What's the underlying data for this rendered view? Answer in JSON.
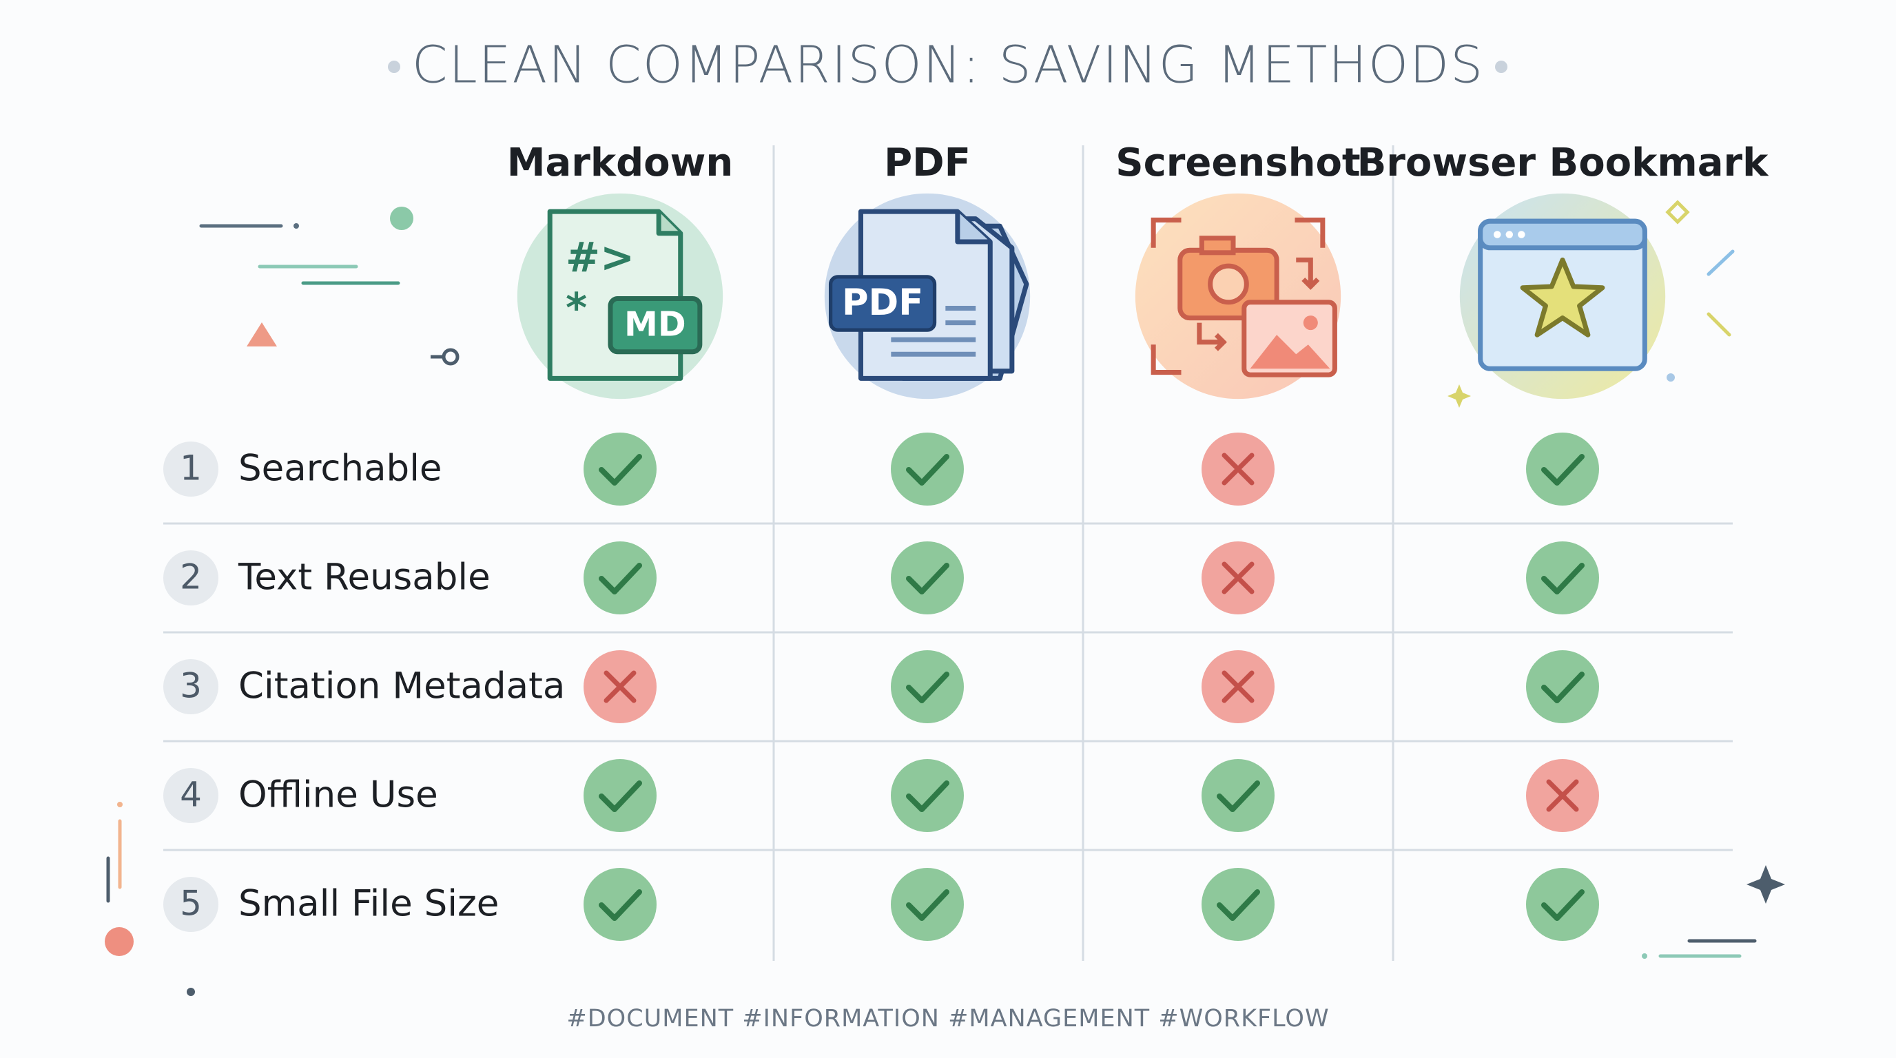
{
  "title": "CLEAN COMPARISON: SAVING METHODS",
  "columns": [
    {
      "name": "Markdown",
      "icon_text": "MD"
    },
    {
      "name": "PDF",
      "icon_text": "PDF"
    },
    {
      "name": "Screenshot"
    },
    {
      "name": "Browser Bookmark"
    }
  ],
  "rows": [
    {
      "number": 1,
      "label": "Searchable",
      "cells": [
        true,
        true,
        false,
        true
      ]
    },
    {
      "number": 2,
      "label": "Text Reusable",
      "cells": [
        true,
        true,
        false,
        true
      ]
    },
    {
      "number": 3,
      "label": "Citation Metadata",
      "cells": [
        false,
        true,
        false,
        true
      ]
    },
    {
      "number": 4,
      "label": "Offline Use",
      "cells": [
        true,
        true,
        true,
        false
      ]
    },
    {
      "number": 5,
      "label": "Small File Size",
      "cells": [
        true,
        true,
        true,
        true
      ]
    }
  ],
  "footer": "#DOCUMENT #INFORMATION #MANAGEMENT #WORKFLOW"
}
